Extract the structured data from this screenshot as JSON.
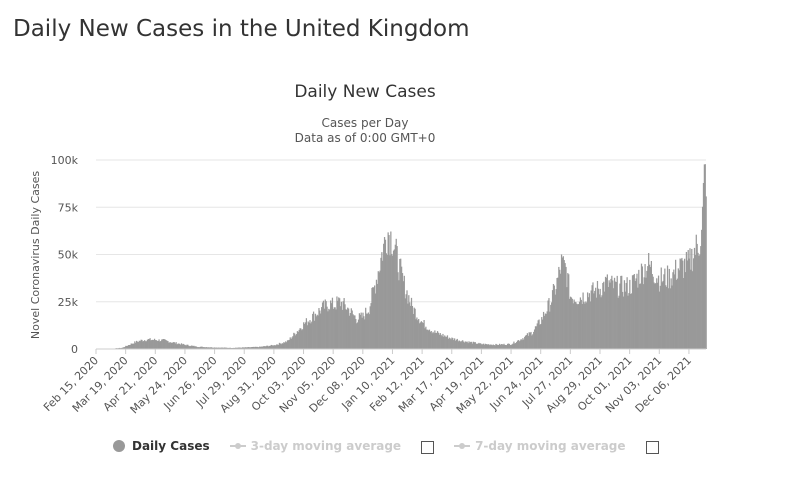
{
  "page": {
    "title": "Daily New Cases in the United Kingdom"
  },
  "chart_data": {
    "type": "bar",
    "title": "Daily New Cases",
    "subtitle": "Cases per Day",
    "subtitle2": "Data as of 0:00 GMT+0",
    "xlabel": "",
    "ylabel": "Novel Coronavirus Daily Cases",
    "ylim": [
      0,
      100000
    ],
    "yticks": [
      0,
      25000,
      50000,
      75000,
      100000
    ],
    "ytick_labels": [
      "0",
      "25k",
      "50k",
      "75k",
      "100k"
    ],
    "x_start": "Feb 15, 2020",
    "x_end": "Dec 25, 2021",
    "xtick_labels": [
      "Feb 15, 2020",
      "Mar 19, 2020",
      "Apr 21, 2020",
      "May 24, 2020",
      "Jun 26, 2020",
      "Jul 29, 2020",
      "Aug 31, 2020",
      "Oct 03, 2020",
      "Nov 05, 2020",
      "Dec 08, 2020",
      "Jan 10, 2021",
      "Feb 12, 2021",
      "Mar 17, 2021",
      "Apr 19, 2021",
      "May 22, 2021",
      "Jun 24, 2021",
      "Jul 27, 2021",
      "Aug 29, 2021",
      "Oct 01, 2021",
      "Nov 03, 2021",
      "Dec 06, 2021"
    ],
    "grid": true,
    "legend_position": "bottom",
    "bar_color": "#999999",
    "series": [
      {
        "name": "Daily Cases",
        "x": [
          "Feb 15, 2020",
          "Mar 01, 2020",
          "Mar 15, 2020",
          "Mar 29, 2020",
          "Apr 05, 2020",
          "Apr 12, 2020",
          "Apr 21, 2020",
          "May 01, 2020",
          "May 10, 2020",
          "May 24, 2020",
          "Jun 07, 2020",
          "Jun 26, 2020",
          "Jul 15, 2020",
          "Jul 29, 2020",
          "Aug 15, 2020",
          "Aug 31, 2020",
          "Sep 15, 2020",
          "Oct 03, 2020",
          "Oct 15, 2020",
          "Oct 25, 2020",
          "Nov 01, 2020",
          "Nov 05, 2020",
          "Nov 12, 2020",
          "Nov 20, 2020",
          "Dec 01, 2020",
          "Dec 08, 2020",
          "Dec 15, 2020",
          "Dec 22, 2020",
          "Dec 29, 2020",
          "Jan 02, 2021",
          "Jan 05, 2021",
          "Jan 10, 2021",
          "Jan 15, 2021",
          "Jan 22, 2021",
          "Feb 01, 2021",
          "Feb 12, 2021",
          "Feb 25, 2021",
          "Mar 17, 2021",
          "Apr 01, 2021",
          "Apr 19, 2021",
          "May 05, 2021",
          "May 22, 2021",
          "Jun 05, 2021",
          "Jun 15, 2021",
          "Jun 24, 2021",
          "Jul 05, 2021",
          "Jul 12, 2021",
          "Jul 17, 2021",
          "Jul 22, 2021",
          "Jul 27, 2021",
          "Aug 05, 2021",
          "Aug 15, 2021",
          "Aug 29, 2021",
          "Sep 05, 2021",
          "Sep 15, 2021",
          "Oct 01, 2021",
          "Oct 10, 2021",
          "Oct 21, 2021",
          "Nov 03, 2021",
          "Nov 15, 2021",
          "Nov 25, 2021",
          "Dec 06, 2021",
          "Dec 12, 2021",
          "Dec 16, 2021",
          "Dec 20, 2021",
          "Dec 23, 2021",
          "Dec 25, 2021"
        ],
        "values": [
          0,
          100,
          600,
          3500,
          4500,
          5000,
          4800,
          4500,
          3500,
          2200,
          1200,
          800,
          600,
          800,
          1100,
          2000,
          4000,
          13000,
          18000,
          22000,
          24000,
          23000,
          25000,
          22000,
          16000,
          17000,
          22000,
          35000,
          50000,
          58000,
          62000,
          58000,
          48000,
          35000,
          22000,
          14000,
          9000,
          5500,
          4000,
          2600,
          2300,
          2600,
          6000,
          9000,
          15000,
          25000,
          35000,
          45000,
          42000,
          28000,
          27000,
          29000,
          32000,
          35000,
          33000,
          33000,
          38000,
          45000,
          37000,
          38000,
          43000,
          45000,
          52000,
          55000,
          60000,
          90000,
          93000
        ]
      }
    ]
  },
  "legend": {
    "items": [
      {
        "label": "Daily Cases"
      },
      {
        "label": "3-day moving average"
      },
      {
        "label": "7-day moving average"
      }
    ]
  }
}
